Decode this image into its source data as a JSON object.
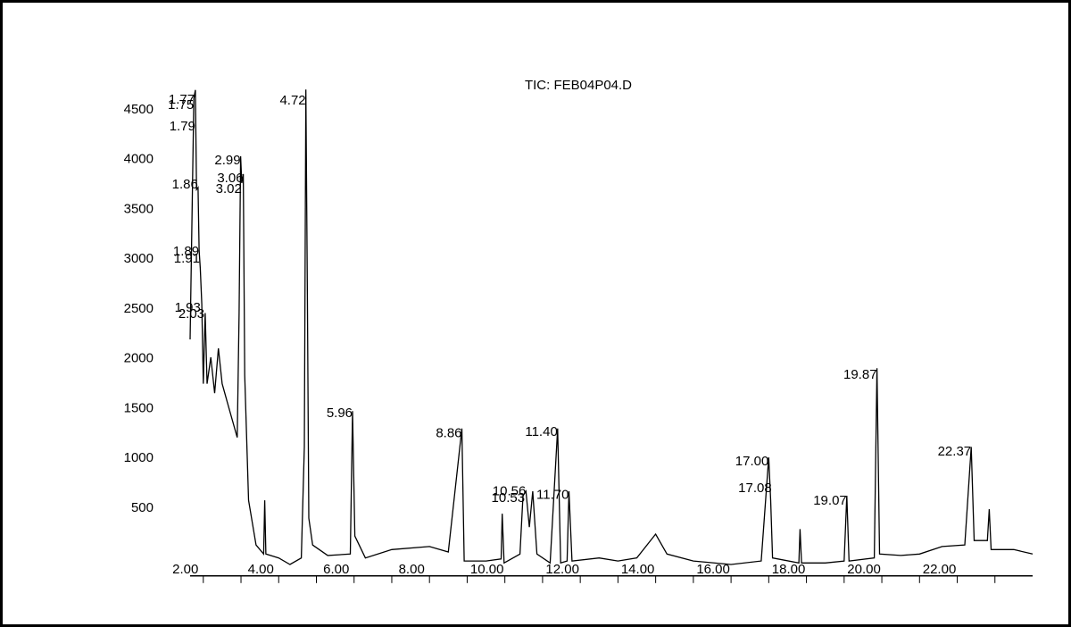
{
  "chart_data": {
    "type": "line",
    "title": "TIC: FEB04P04.D",
    "x": [
      1.65,
      1.75,
      1.79,
      1.82,
      1.86,
      1.89,
      1.92,
      1.96,
      2.0,
      2.05,
      2.1,
      2.2,
      2.3,
      2.4,
      2.5,
      2.7,
      2.9,
      2.95,
      2.99,
      3.02,
      3.06,
      3.1,
      3.2,
      3.4,
      3.6,
      3.63,
      3.66,
      4.0,
      4.3,
      4.6,
      4.68,
      4.72,
      4.76,
      4.8,
      4.9,
      5.3,
      5.9,
      5.96,
      6.02,
      6.3,
      7.0,
      8.0,
      8.5,
      8.86,
      8.92,
      9.5,
      9.9,
      9.93,
      9.98,
      10.4,
      10.48,
      10.56,
      10.65,
      10.74,
      10.85,
      11.2,
      11.4,
      11.48,
      11.65,
      11.7,
      11.78,
      12.5,
      13.0,
      13.5,
      14.0,
      14.3,
      15.0,
      16.0,
      16.8,
      17.0,
      17.05,
      17.1,
      17.8,
      17.83,
      17.87,
      18.5,
      19.0,
      19.07,
      19.13,
      19.8,
      19.87,
      19.94,
      20.5,
      21.0,
      21.6,
      22.2,
      22.37,
      22.45,
      22.8,
      22.85,
      22.9,
      23.5,
      24.0
    ],
    "series": [
      {
        "color": "#000000",
        "values": [
          2195,
          4615,
          4700,
          3700,
          3720,
          3090,
          2910,
          2550,
          1750,
          2460,
          1750,
          2015,
          1655,
          2105,
          1750,
          1480,
          1210,
          2460,
          4035,
          3765,
          3855,
          1835,
          580,
          130,
          40,
          580,
          40,
          0,
          -65,
          0,
          1115,
          4705,
          2645,
          400,
          130,
          25,
          40,
          1475,
          220,
          0,
          85,
          115,
          60,
          1300,
          -30,
          -30,
          -10,
          445,
          -50,
          40,
          625,
          670,
          310,
          670,
          40,
          -50,
          1300,
          -50,
          -30,
          670,
          -30,
          0,
          -30,
          0,
          240,
          40,
          -30,
          -65,
          -30,
          1010,
          580,
          0,
          -50,
          290,
          -50,
          -50,
          -30,
          625,
          -30,
          0,
          1905,
          40,
          25,
          40,
          115,
          130,
          1115,
          175,
          175,
          490,
          85,
          85,
          40
        ]
      }
    ],
    "xlim": [
      1.65,
      24
    ],
    "ylim": [
      -180,
      4780
    ],
    "xticks": [
      {
        "value": 2,
        "label": "2.00"
      },
      {
        "value": 4,
        "label": "4.00"
      },
      {
        "value": 6,
        "label": "6.00"
      },
      {
        "value": 8,
        "label": "8.00"
      },
      {
        "value": 10,
        "label": "10.00"
      },
      {
        "value": 12,
        "label": "12.00"
      },
      {
        "value": 14,
        "label": "14.00"
      },
      {
        "value": 16,
        "label": "16.00"
      },
      {
        "value": 18,
        "label": "18.00"
      },
      {
        "value": 20,
        "label": "20.00"
      },
      {
        "value": 22,
        "label": "22.00"
      }
    ],
    "xminor": [
      3,
      5,
      7,
      9,
      11,
      13,
      15,
      17,
      19,
      21,
      23
    ],
    "yticks": [
      500,
      1000,
      1500,
      2000,
      2500,
      3000,
      3500,
      4000,
      4500
    ],
    "peaks": [
      {
        "value": 1.77,
        "label": "1.77",
        "label_y": 4597
      },
      {
        "value": 1.75,
        "label": "1.75",
        "label_y": 4543
      },
      {
        "value": 1.79,
        "label": "1.79",
        "label_y": 4330
      },
      {
        "value": 1.86,
        "label": "1.86",
        "label_y": 3745
      },
      {
        "value": 1.89,
        "label": "1.89",
        "label_y": 3075
      },
      {
        "value": 1.91,
        "label": "1.91",
        "label_y": 3000
      },
      {
        "value": 1.93,
        "label": "1.93",
        "label_y": 2510
      },
      {
        "value": 2.03,
        "label": "2.03",
        "label_y": 2445
      },
      {
        "value": 2.99,
        "label": "2.99",
        "label_y": 3990
      },
      {
        "value": 3.06,
        "label": "3.06",
        "label_y": 3810
      },
      {
        "value": 3.02,
        "label": "3.02",
        "label_y": 3700
      },
      {
        "value": 4.72,
        "label": "4.72",
        "label_y": 4590
      },
      {
        "value": 5.96,
        "label": "5.96",
        "label_y": 1450
      },
      {
        "value": 8.86,
        "label": "8.86",
        "label_y": 1250
      },
      {
        "value": 10.53,
        "label": "10.53",
        "label_y": 600
      },
      {
        "value": 10.56,
        "label": "10.56",
        "label_y": 665
      },
      {
        "value": 11.4,
        "label": "11.40",
        "label_y": 1260
      },
      {
        "value": 11.7,
        "label": "11.70",
        "label_y": 630
      },
      {
        "value": 17.0,
        "label": "17.00",
        "label_y": 965
      },
      {
        "value": 17.08,
        "label": "17.08",
        "label_y": 695
      },
      {
        "value": 19.07,
        "label": "19.07",
        "label_y": 570
      },
      {
        "value": 19.87,
        "label": "19.87",
        "label_y": 1835
      },
      {
        "value": 22.37,
        "label": "22.37",
        "label_y": 1065
      }
    ]
  }
}
